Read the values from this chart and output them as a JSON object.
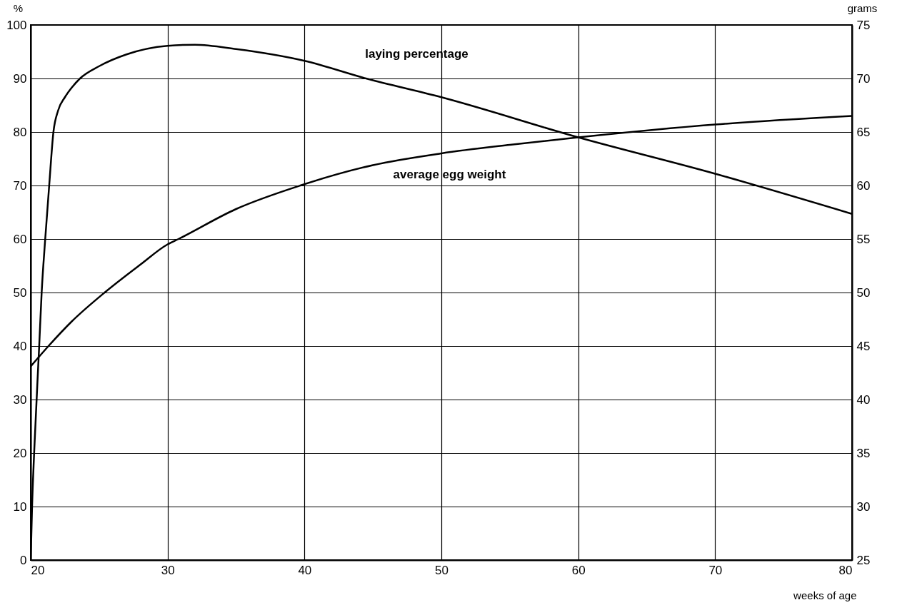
{
  "chart_data": {
    "type": "line",
    "xlabel": "weeks of age",
    "ylabel": "%",
    "y2label": "grams",
    "xlim": [
      20,
      80
    ],
    "xticks": [
      20,
      30,
      40,
      50,
      60,
      70,
      80
    ],
    "ylim": [
      0,
      100
    ],
    "yticks": [
      0,
      10,
      20,
      30,
      40,
      50,
      60,
      70,
      80,
      90,
      100
    ],
    "y2lim": [
      25,
      75
    ],
    "y2ticks": [
      25,
      30,
      35,
      40,
      45,
      50,
      55,
      60,
      65,
      70,
      75
    ],
    "grid": true,
    "series": [
      {
        "name": "laying percentage",
        "color": "#000000",
        "x": [
          20,
          20.1,
          20.25,
          20.62,
          20.8,
          21.06,
          21.35,
          21.66,
          22,
          22.5,
          23,
          23.6,
          25,
          27,
          30,
          32,
          35,
          40,
          44.5,
          50,
          60,
          70,
          80
        ],
        "values": [
          0,
          10,
          20,
          40,
          50,
          60,
          70,
          80,
          84,
          86.5,
          88.3,
          90,
          92.3,
          94.5,
          96.1,
          96.3,
          95.5,
          93.3,
          90,
          86.5,
          79,
          72.2,
          64.7
        ]
      },
      {
        "name": "average egg weight",
        "color": "#000000",
        "axis": "y2",
        "x": [
          20,
          21.3,
          23,
          25.4,
          28,
          30,
          30.8,
          35,
          39.7,
          45,
          50,
          55,
          60,
          70,
          80
        ],
        "values": [
          43.1,
          45,
          47.3,
          50,
          52.6,
          54.5,
          55,
          57.8,
          60,
          61.9,
          63,
          63.8,
          64.5,
          65.7,
          66.5
        ]
      }
    ]
  }
}
